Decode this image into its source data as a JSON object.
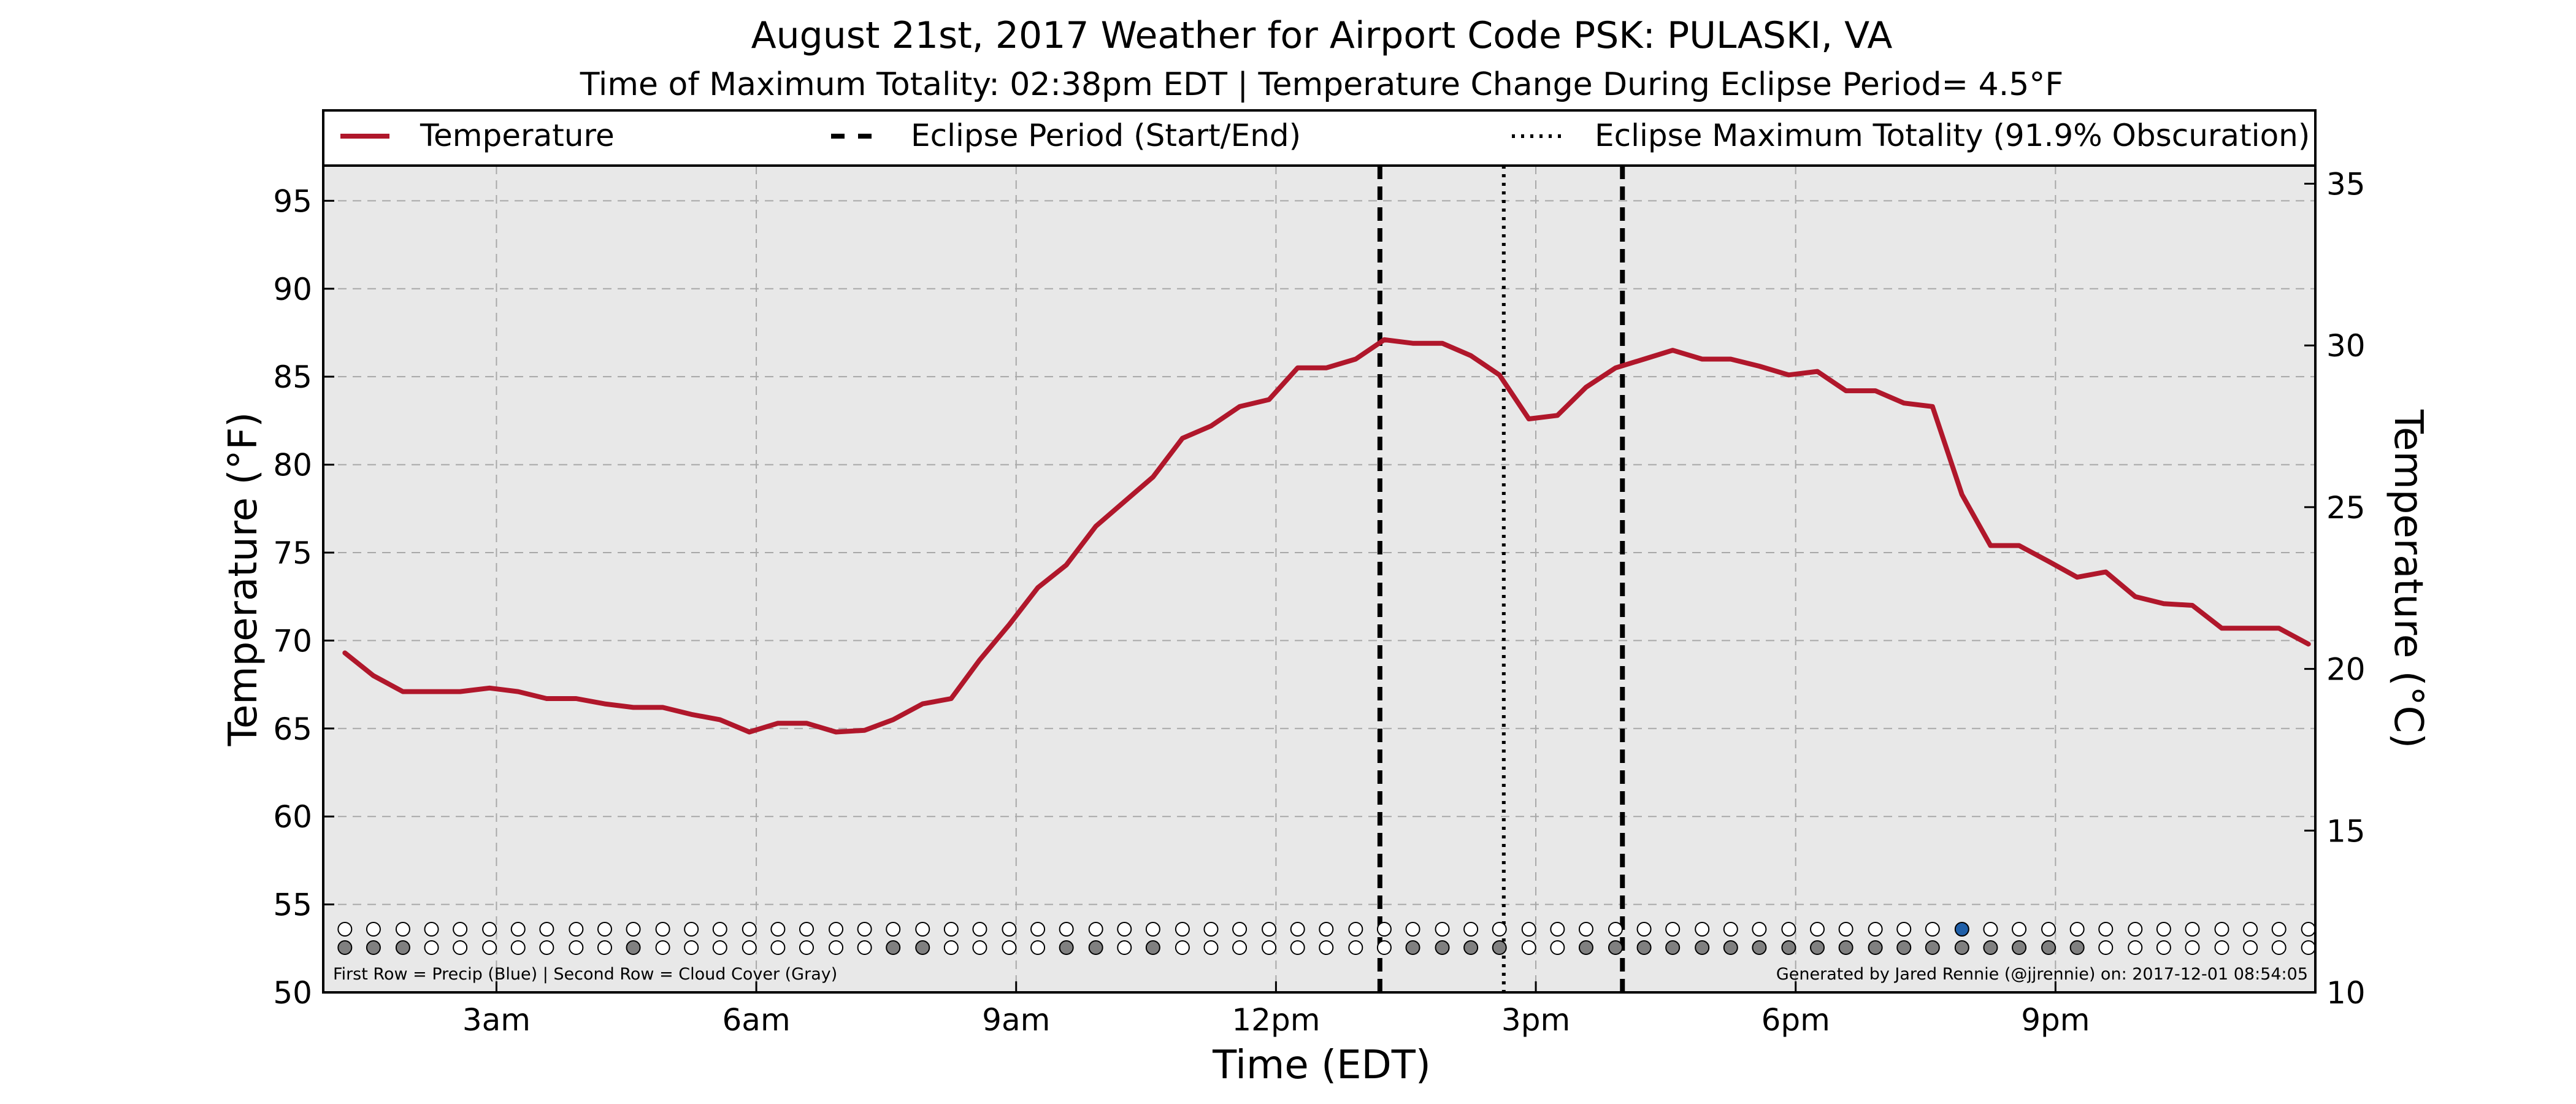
{
  "chart_data": {
    "type": "line",
    "title": "August 21st, 2017 Weather for Airport Code PSK: PULASKI, VA",
    "subtitle": "Time of Maximum Totality: 02:38pm EDT | Temperature Change During Eclipse Period= 4.5°F",
    "xlabel": "Time (EDT)",
    "ylabel_left": "Temperature (°F)",
    "ylabel_right": "Temperature (°C)",
    "ylim": [
      50,
      97
    ],
    "ylim_right_c": [
      10,
      35.56
    ],
    "xlim_hours": [
      1.0,
      24.0
    ],
    "grid": true,
    "legend_position": "top (above plot)",
    "legend": [
      {
        "label": "Temperature",
        "style": "solid",
        "color": "#b0172b"
      },
      {
        "label": "Eclipse Period (Start/End)",
        "style": "dashed",
        "color": "#000000"
      },
      {
        "label": "Eclipse Maximum Totality (91.9% Obscuration)",
        "style": "dotted",
        "color": "#000000"
      }
    ],
    "x_ticks": [
      {
        "label": "3am",
        "hour": 3
      },
      {
        "label": "6am",
        "hour": 6
      },
      {
        "label": "9am",
        "hour": 9
      },
      {
        "label": "12pm",
        "hour": 12
      },
      {
        "label": "3pm",
        "hour": 15
      },
      {
        "label": "6pm",
        "hour": 18
      },
      {
        "label": "9pm",
        "hour": 21
      }
    ],
    "y_ticks_left": [
      "50",
      "55",
      "60",
      "65",
      "70",
      "75",
      "80",
      "85",
      "90",
      "95"
    ],
    "y_ticks_right": [
      "10",
      "15",
      "20",
      "25",
      "30",
      "35"
    ],
    "eclipse_start_hour": 13.2,
    "eclipse_end_hour": 16.0,
    "eclipse_max_hour": 14.63,
    "series": [
      {
        "name": "Temperature",
        "color": "#b0172b",
        "x": [
          1.25,
          1.58,
          1.92,
          2.25,
          2.58,
          2.92,
          3.25,
          3.58,
          3.92,
          4.25,
          4.58,
          4.92,
          5.25,
          5.58,
          5.92,
          6.25,
          6.58,
          6.92,
          7.25,
          7.58,
          7.92,
          8.25,
          8.58,
          8.92,
          9.25,
          9.58,
          9.92,
          10.25,
          10.58,
          10.92,
          11.25,
          11.58,
          11.92,
          12.25,
          12.58,
          12.92,
          13.25,
          13.58,
          13.92,
          14.25,
          14.58,
          14.92,
          15.25,
          15.58,
          15.92,
          16.25,
          16.58,
          16.92,
          17.25,
          17.58,
          17.92,
          18.25,
          18.58,
          18.92,
          19.25,
          19.58,
          19.92,
          20.25,
          20.58,
          20.92,
          21.25,
          21.58,
          21.92,
          22.25,
          22.58,
          22.92,
          23.25,
          23.58,
          23.92
        ],
        "values": [
          69.3,
          68.0,
          67.1,
          67.1,
          67.1,
          67.3,
          67.1,
          66.7,
          66.7,
          66.4,
          66.2,
          66.2,
          65.8,
          65.5,
          64.8,
          65.3,
          65.3,
          64.8,
          64.9,
          65.5,
          66.4,
          66.7,
          68.9,
          70.9,
          73.0,
          74.3,
          76.5,
          77.9,
          79.3,
          81.5,
          82.2,
          83.3,
          83.7,
          85.5,
          85.5,
          86.0,
          87.1,
          86.9,
          86.9,
          86.2,
          85.1,
          82.6,
          82.8,
          84.4,
          85.5,
          86.0,
          86.5,
          86.0,
          86.0,
          85.6,
          85.1,
          85.3,
          84.2,
          84.2,
          83.5,
          83.3,
          78.3,
          75.4,
          75.4,
          74.5,
          73.6,
          73.9,
          72.5,
          72.1,
          72.0,
          70.7,
          70.7,
          70.7,
          69.8
        ]
      }
    ],
    "marker_rows": {
      "row1_precip_blue_hours": [
        19.9
      ],
      "row2_cloud_gray_hours": [
        1.25,
        1.58,
        1.92,
        4.58,
        7.58,
        7.92,
        9.58,
        9.92,
        10.58,
        13.58,
        13.92,
        14.25,
        14.58,
        15.58,
        15.92,
        16.25,
        16.58,
        16.92,
        17.25,
        17.58,
        17.92,
        18.25,
        18.58,
        18.92,
        19.25,
        19.58,
        19.92,
        20.25,
        20.58,
        20.92,
        21.25
      ]
    },
    "footnote_left": "First Row = Precip (Blue) | Second Row = Cloud Cover (Gray)",
    "footnote_right": "Generated by Jared Rennie (@jjrennie) on: 2017-12-01 08:54:05"
  }
}
